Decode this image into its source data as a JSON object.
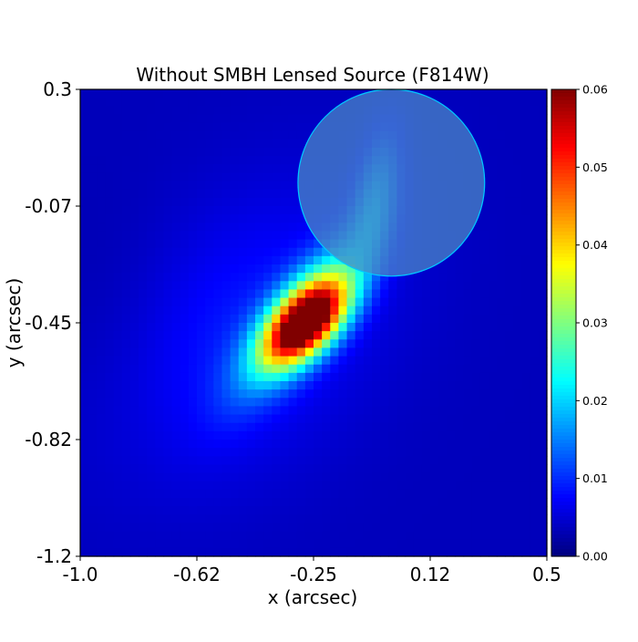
{
  "chart_data": {
    "type": "heatmap",
    "title": "Without SMBH Lensed Source (F814W)",
    "xlabel": "x (arcsec)",
    "ylabel": "y (arcsec)",
    "xlim": [
      -1.0,
      0.5
    ],
    "ylim": [
      -1.2,
      0.3
    ],
    "x_ticks": [
      "-1.0",
      "-0.62",
      "-0.25",
      "0.12",
      "0.5"
    ],
    "x_tick_values": [
      -1.0,
      -0.625,
      -0.25,
      0.125,
      0.5
    ],
    "y_ticks": [
      "0.3",
      "-0.07",
      "-0.45",
      "-0.82",
      "-1.2"
    ],
    "y_tick_values": [
      0.3,
      -0.075,
      -0.45,
      -0.825,
      -1.2
    ],
    "colormap": "jet",
    "colorbar": {
      "vmin": 0.0,
      "vmax": 0.06,
      "ticks": [
        "0.00",
        "0.01",
        "0.02",
        "0.03",
        "0.04",
        "0.05",
        "0.06"
      ],
      "tick_values": [
        0.0,
        0.01,
        0.02,
        0.03,
        0.04,
        0.05,
        0.06
      ]
    },
    "grid": {
      "nx": 56,
      "ny": 56,
      "background": 0.0035,
      "components": [
        {
          "center": [
            -0.5,
            -0.5
          ],
          "sigma_major": 0.38,
          "sigma_minor": 0.26,
          "angle_deg": 45,
          "amplitude": 0.0055
        },
        {
          "center": [
            -0.28,
            -0.42
          ],
          "sigma_major": 0.2,
          "sigma_minor": 0.07,
          "angle_deg": 52,
          "amplitude": 0.022
        },
        {
          "center": [
            -0.27,
            -0.45
          ],
          "sigma_major": 0.11,
          "sigma_minor": 0.06,
          "angle_deg": 45,
          "amplitude": 0.05
        },
        {
          "center": [
            -0.05,
            -0.05
          ],
          "sigma_major": 0.16,
          "sigma_minor": 0.05,
          "angle_deg": 80,
          "amplitude": 0.012
        },
        {
          "center": [
            -0.85,
            -0.5
          ],
          "sigma_major": 0.3,
          "sigma_minor": 0.18,
          "angle_deg": 90,
          "amplitude": -0.0015
        }
      ]
    },
    "annotations": [
      {
        "type": "circle",
        "center": [
          0.0,
          0.0
        ],
        "radius": 0.3,
        "fill": "#4a87c6",
        "edge": "#00c8ff",
        "opacity": 0.75
      }
    ]
  }
}
